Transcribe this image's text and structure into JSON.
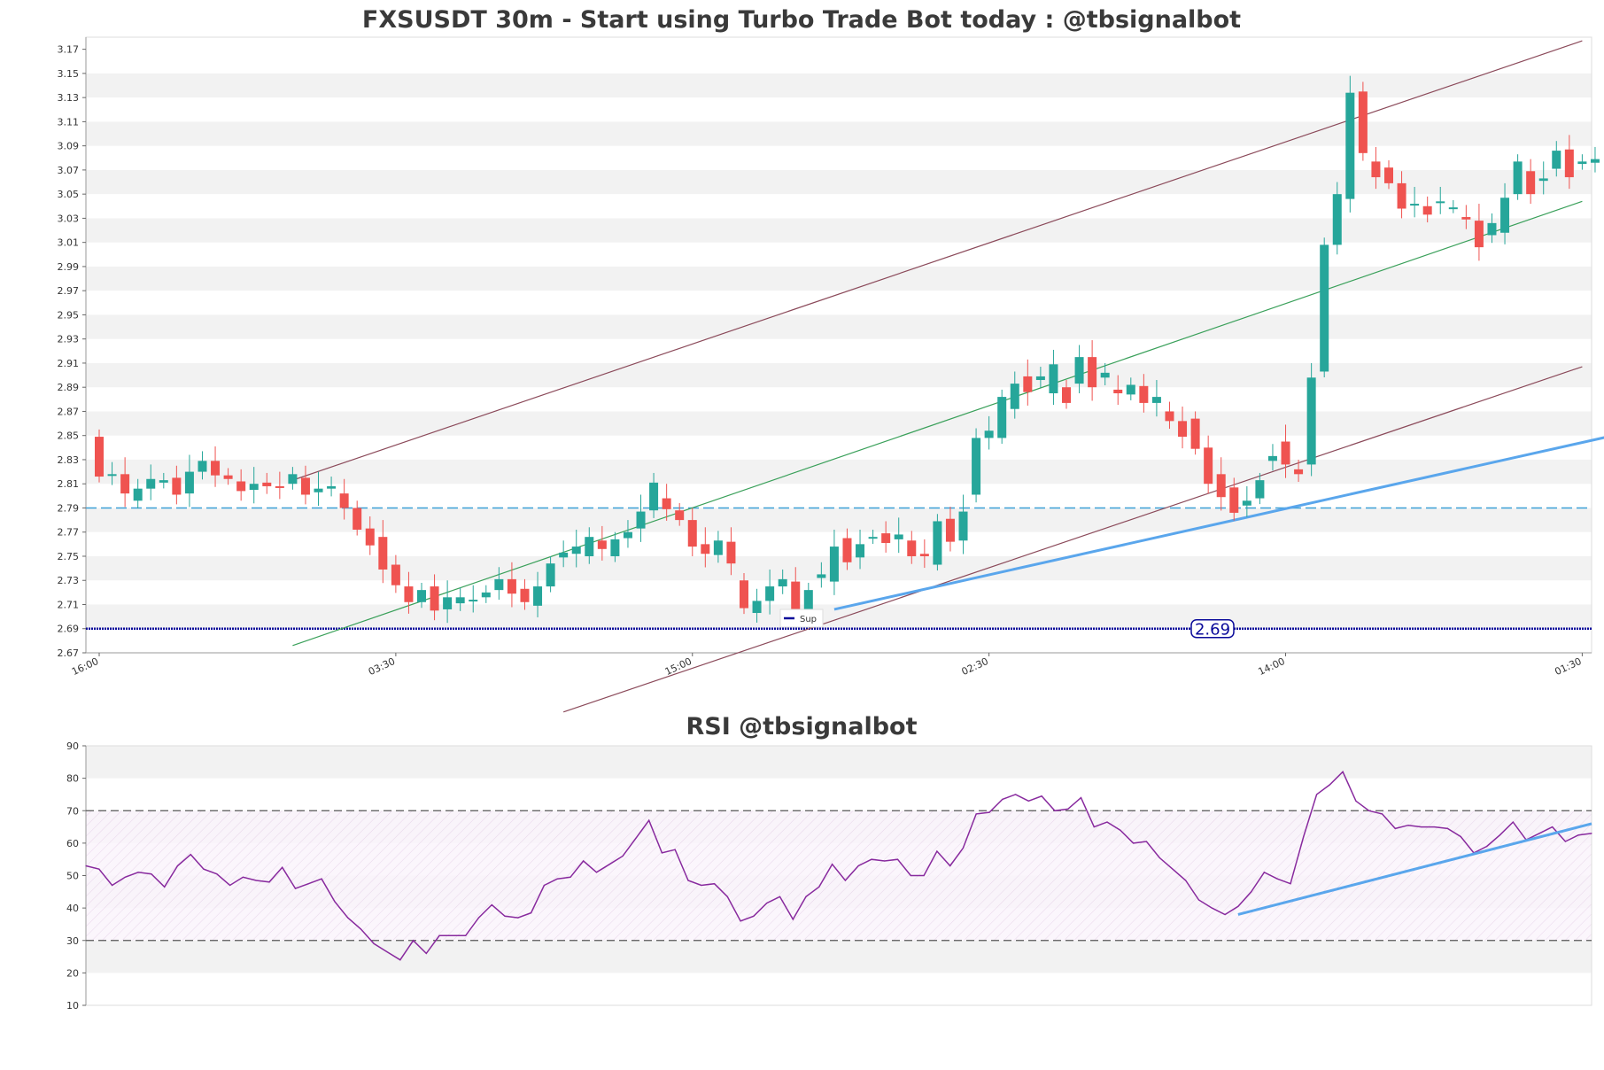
{
  "chart_data": [
    {
      "type": "candlestick",
      "title": "FXSUSDT 30m - Start using Turbo Trade Bot today : @tbsignalbot",
      "ylim": [
        2.67,
        3.18
      ],
      "yticks": [
        "2.67",
        "2.69",
        "2.71",
        "2.73",
        "2.75",
        "2.77",
        "2.79",
        "2.81",
        "2.83",
        "2.85",
        "2.87",
        "2.89",
        "2.91",
        "2.93",
        "2.95",
        "2.97",
        "2.99",
        "3.01",
        "3.03",
        "3.05",
        "3.07",
        "3.09",
        "3.11",
        "3.13",
        "3.15",
        "3.17"
      ],
      "xticks": [
        {
          "label": "16:00",
          "index": 0
        },
        {
          "label": "03:30",
          "index": 23
        },
        {
          "label": "15:00",
          "index": 46
        },
        {
          "label": "02:30",
          "index": 69
        },
        {
          "label": "14:00",
          "index": 92
        },
        {
          "label": "01:30",
          "index": 115
        }
      ],
      "candles": [
        [
          2.849,
          2.816
        ],
        [
          2.817,
          2.818
        ],
        [
          2.818,
          2.802
        ],
        [
          2.796,
          2.806
        ],
        [
          2.806,
          2.814
        ],
        [
          2.811,
          2.813
        ],
        [
          2.815,
          2.801
        ],
        [
          2.802,
          2.82
        ],
        [
          2.82,
          2.829
        ],
        [
          2.829,
          2.817
        ],
        [
          2.817,
          2.814
        ],
        [
          2.812,
          2.804
        ],
        [
          2.805,
          2.81
        ],
        [
          2.811,
          2.808
        ],
        [
          2.808,
          2.807
        ],
        [
          2.81,
          2.818
        ],
        [
          2.815,
          2.801
        ],
        [
          2.803,
          2.806
        ],
        [
          2.806,
          2.808
        ],
        [
          2.802,
          2.79
        ],
        [
          2.79,
          2.772
        ],
        [
          2.773,
          2.759
        ],
        [
          2.766,
          2.739
        ],
        [
          2.743,
          2.726
        ],
        [
          2.725,
          2.712
        ],
        [
          2.712,
          2.722
        ],
        [
          2.725,
          2.705
        ],
        [
          2.706,
          2.716
        ],
        [
          2.711,
          2.716
        ],
        [
          2.713,
          2.714
        ],
        [
          2.716,
          2.72
        ],
        [
          2.722,
          2.731
        ],
        [
          2.731,
          2.719
        ],
        [
          2.723,
          2.712
        ],
        [
          2.709,
          2.725
        ],
        [
          2.725,
          2.744
        ],
        [
          2.749,
          2.753
        ],
        [
          2.752,
          2.758
        ],
        [
          2.75,
          2.766
        ],
        [
          2.763,
          2.756
        ],
        [
          2.75,
          2.764
        ],
        [
          2.765,
          2.77
        ],
        [
          2.773,
          2.787
        ],
        [
          2.788,
          2.811
        ],
        [
          2.798,
          2.789
        ],
        [
          2.788,
          2.78
        ],
        [
          2.78,
          2.758
        ],
        [
          2.76,
          2.752
        ],
        [
          2.751,
          2.763
        ],
        [
          2.762,
          2.744
        ],
        [
          2.73,
          2.707
        ],
        [
          2.703,
          2.713
        ],
        [
          2.713,
          2.725
        ],
        [
          2.725,
          2.731
        ],
        [
          2.729,
          2.706
        ],
        [
          2.706,
          2.722
        ],
        [
          2.732,
          2.735
        ],
        [
          2.729,
          2.758
        ],
        [
          2.765,
          2.745
        ],
        [
          2.749,
          2.76
        ],
        [
          2.765,
          2.766
        ],
        [
          2.769,
          2.761
        ],
        [
          2.764,
          2.768
        ],
        [
          2.763,
          2.75
        ],
        [
          2.752,
          2.75
        ],
        [
          2.743,
          2.779
        ],
        [
          2.781,
          2.762
        ],
        [
          2.763,
          2.787
        ],
        [
          2.801,
          2.848
        ],
        [
          2.848,
          2.854
        ],
        [
          2.848,
          2.882
        ],
        [
          2.872,
          2.893
        ],
        [
          2.899,
          2.886
        ],
        [
          2.896,
          2.899
        ],
        [
          2.885,
          2.909
        ],
        [
          2.89,
          2.877
        ],
        [
          2.893,
          2.915
        ],
        [
          2.915,
          2.89
        ],
        [
          2.898,
          2.902
        ],
        [
          2.888,
          2.885
        ],
        [
          2.884,
          2.892
        ],
        [
          2.891,
          2.877
        ],
        [
          2.877,
          2.882
        ],
        [
          2.87,
          2.862
        ],
        [
          2.862,
          2.849
        ],
        [
          2.864,
          2.839
        ],
        [
          2.84,
          2.81
        ],
        [
          2.818,
          2.799
        ],
        [
          2.807,
          2.786
        ],
        [
          2.792,
          2.796
        ],
        [
          2.798,
          2.813
        ],
        [
          2.829,
          2.833
        ],
        [
          2.845,
          2.826
        ],
        [
          2.822,
          2.818
        ],
        [
          2.826,
          2.898
        ],
        [
          2.903,
          3.008
        ],
        [
          3.008,
          3.05
        ],
        [
          3.046,
          3.134
        ],
        [
          3.135,
          3.084
        ],
        [
          3.077,
          3.064
        ],
        [
          3.072,
          3.059
        ],
        [
          3.059,
          3.038
        ],
        [
          3.042,
          3.042
        ],
        [
          3.04,
          3.033
        ],
        [
          3.043,
          3.044
        ],
        [
          3.039,
          3.039
        ],
        [
          3.031,
          3.029
        ],
        [
          3.028,
          3.006
        ],
        [
          3.016,
          3.026
        ],
        [
          3.018,
          3.047
        ],
        [
          3.05,
          3.077
        ],
        [
          3.069,
          3.05
        ],
        [
          3.061,
          3.063
        ],
        [
          3.071,
          3.086
        ],
        [
          3.087,
          3.064
        ],
        [
          3.075,
          3.077
        ],
        [
          3.076,
          3.079
        ]
      ],
      "support_line": {
        "label": "Sup",
        "value": 2.69,
        "value_label": "2.69",
        "color": "#0a0a9a"
      },
      "resistance_dashed": {
        "value": 2.79,
        "color": "#3b9fd6"
      },
      "colors": {
        "up": "#26a69a",
        "down": "#ef5350",
        "channel": "#8b4a5a",
        "mid": "#3aa05a",
        "trend": "#5aa6ec"
      }
    },
    {
      "type": "line",
      "title": "RSI @tbsignalbot",
      "ylim": [
        10,
        90
      ],
      "yticks": [
        "10",
        "20",
        "30",
        "40",
        "50",
        "60",
        "70",
        "80",
        "90"
      ],
      "levels": [
        30,
        70
      ],
      "series": [
        {
          "color": "#882a9e",
          "values": [
            53,
            52,
            47,
            49.5,
            51,
            50.5,
            46.5,
            53,
            56.5,
            52,
            50.5,
            47,
            49.5,
            48.5,
            48,
            52.5,
            46,
            47.5,
            49,
            42,
            37,
            33.5,
            29,
            26.5,
            24,
            30,
            26,
            31.5,
            31.5,
            31.5,
            37,
            41,
            37.5,
            37,
            38.5,
            47,
            49,
            49.5,
            54.5,
            51,
            53.5,
            56,
            61.5,
            67,
            57,
            58,
            48.5,
            47,
            47.5,
            43.5,
            36,
            37.5,
            41.5,
            43.5,
            36.5,
            43.5,
            46.5,
            53.5,
            48.5,
            53,
            55,
            54.5,
            55,
            50,
            50,
            57.5,
            53,
            58.5,
            69,
            69.5,
            73.5,
            75,
            73,
            74.5,
            70,
            70.5,
            74,
            65,
            66.5,
            64,
            60,
            60.5,
            55.5,
            52,
            48.5,
            42.5,
            40,
            38,
            40.5,
            45,
            51,
            49,
            47.5,
            62,
            75,
            78,
            82,
            73,
            70,
            69,
            64.5,
            65.5,
            65,
            65,
            64.5,
            62,
            57,
            59,
            62.5,
            66.5,
            61,
            63,
            65,
            60.5,
            62.5,
            63
          ]
        }
      ]
    }
  ]
}
